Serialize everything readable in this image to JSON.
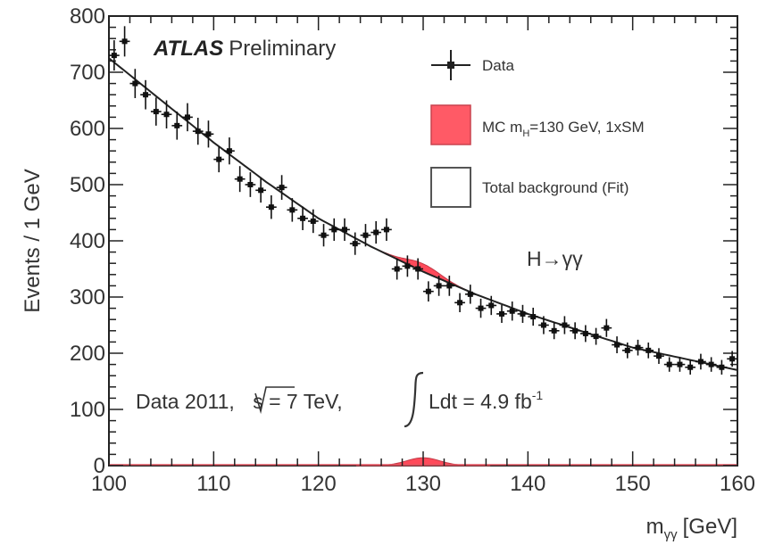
{
  "chart_data": {
    "type": "scatter",
    "experiment": "ATLAS",
    "label_suffix": "Preliminary",
    "xlabel_main": "m",
    "xlabel_sub": "γγ",
    "xlabel_unit": "[GeV]",
    "ylabel": "Events / 1 GeV",
    "xlim": [
      100,
      160
    ],
    "ylim": [
      0,
      800
    ],
    "xticks": [
      100,
      110,
      120,
      130,
      140,
      150,
      160
    ],
    "yticks": [
      0,
      100,
      200,
      300,
      400,
      500,
      600,
      700,
      800
    ],
    "channel": "H→γγ",
    "dataset_line": {
      "prefix": "Data 2011, ",
      "sqrt_s": "s = 7 TeV, ",
      "lumi": "Ldt = 4.9 fb",
      "lumi_exp": "-1"
    },
    "legend": {
      "placement": "top-right",
      "entries": [
        {
          "key": "data",
          "text": "Data"
        },
        {
          "key": "signal",
          "text_main": "MC m",
          "text_sub": "H",
          "text_rest": "=130 GeV, 1xSM"
        },
        {
          "key": "background",
          "text": "Total background (Fit)"
        }
      ]
    },
    "series": [
      {
        "kind": "data",
        "x": [
          100.5,
          101.5,
          102.5,
          103.5,
          104.5,
          105.5,
          106.5,
          107.5,
          108.5,
          109.5,
          110.5,
          111.5,
          112.5,
          113.5,
          114.5,
          115.5,
          116.5,
          117.5,
          118.5,
          119.5,
          120.5,
          121.5,
          122.5,
          123.5,
          124.5,
          125.5,
          126.5,
          127.5,
          128.5,
          129.5,
          130.5,
          131.5,
          132.5,
          133.5,
          134.5,
          135.5,
          136.5,
          137.5,
          138.5,
          139.5,
          140.5,
          141.5,
          142.5,
          143.5,
          144.5,
          145.5,
          146.5,
          147.5,
          148.5,
          149.5,
          150.5,
          151.5,
          152.5,
          153.5,
          154.5,
          155.5,
          156.5,
          157.5,
          158.5,
          159.5
        ],
        "y": [
          730,
          755,
          680,
          660,
          630,
          625,
          605,
          620,
          595,
          590,
          545,
          560,
          510,
          500,
          490,
          460,
          495,
          455,
          440,
          435,
          410,
          420,
          420,
          395,
          410,
          415,
          420,
          350,
          355,
          350,
          310,
          320,
          320,
          290,
          305,
          280,
          285,
          270,
          275,
          270,
          265,
          250,
          240,
          250,
          240,
          235,
          230,
          245,
          215,
          205,
          210,
          205,
          195,
          180,
          180,
          175,
          185,
          180,
          175,
          190
        ],
        "err": [
          27,
          27,
          26,
          26,
          25,
          25,
          25,
          25,
          24,
          24,
          23,
          24,
          23,
          22,
          22,
          21,
          22,
          21,
          21,
          21,
          20,
          20,
          20,
          20,
          20,
          20,
          20,
          19,
          19,
          19,
          18,
          18,
          18,
          17,
          17,
          17,
          17,
          16,
          17,
          16,
          16,
          16,
          15,
          16,
          15,
          15,
          15,
          16,
          15,
          14,
          14,
          14,
          14,
          13,
          13,
          13,
          14,
          13,
          13,
          14
        ]
      },
      {
        "kind": "background_fit",
        "x": [
          100,
          105,
          110,
          115,
          120,
          125,
          130,
          135,
          140,
          145,
          150,
          155,
          160
        ],
        "y": [
          725,
          650,
          575,
          505,
          440,
          390,
          345,
          305,
          270,
          240,
          210,
          190,
          170
        ]
      },
      {
        "kind": "signal",
        "mass": 130,
        "peak": 14,
        "width": 1.6
      }
    ]
  }
}
